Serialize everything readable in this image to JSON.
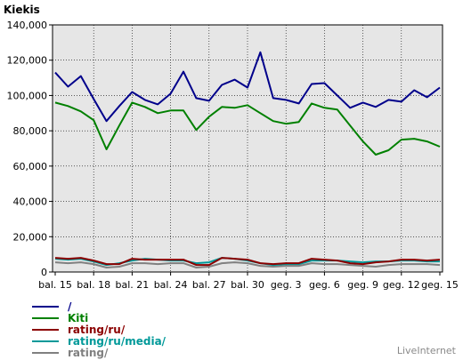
{
  "chart_data": {
    "type": "line",
    "y_axis_title": "Kiekis",
    "ylim": [
      0,
      140000
    ],
    "y_ticks": [
      "140,000",
      "120,000",
      "100,000",
      "80,000",
      "60,000",
      "40,000",
      "20,000",
      "0"
    ],
    "y_tick_values": [
      140000,
      120000,
      100000,
      80000,
      60000,
      40000,
      20000,
      0
    ],
    "grid": true,
    "x_tick_labels": [
      "bal. 15",
      "bal. 18",
      "bal. 21",
      "bal. 24",
      "bal. 27",
      "bal. 30",
      "geg. 3",
      "geg. 6",
      "geg. 9",
      "geg. 12",
      "geg. 15"
    ],
    "x_tick_positions": [
      0,
      3,
      6,
      9,
      12,
      15,
      18,
      21,
      24,
      27,
      30
    ],
    "x": [
      "bal. 15",
      "bal. 16",
      "bal. 17",
      "bal. 18",
      "bal. 19",
      "bal. 20",
      "bal. 21",
      "bal. 22",
      "bal. 23",
      "bal. 24",
      "bal. 25",
      "bal. 26",
      "bal. 27",
      "bal. 28",
      "bal. 29",
      "bal. 30",
      "geg. 1",
      "geg. 2",
      "geg. 3",
      "geg. 4",
      "geg. 5",
      "geg. 6",
      "geg. 7",
      "geg. 8",
      "geg. 9",
      "geg. 10",
      "geg. 11",
      "geg. 12",
      "geg. 13",
      "geg. 14",
      "geg. 15"
    ],
    "series": [
      {
        "name": "/",
        "color": "#00008b",
        "values": [
          113000,
          105000,
          111000,
          98000,
          85500,
          94000,
          102000,
          97500,
          95000,
          101000,
          113500,
          98500,
          97000,
          106000,
          109000,
          104500,
          124500,
          98500,
          97500,
          95500,
          106500,
          107000,
          100000,
          93000,
          96000,
          93500,
          97500,
          96500,
          103000,
          99000,
          104500
        ]
      },
      {
        "name": "Kiti",
        "color": "#008000",
        "values": [
          96000,
          94000,
          91000,
          86000,
          69500,
          83000,
          96000,
          93500,
          90000,
          91500,
          91500,
          80500,
          88000,
          93500,
          93000,
          94500,
          90000,
          85500,
          84000,
          85000,
          95500,
          93000,
          92000,
          83000,
          74000,
          66500,
          69000,
          75000,
          75500,
          74000,
          71000
        ]
      },
      {
        "name": "rating/ru/",
        "color": "#8b0000",
        "values": [
          8000,
          7500,
          8000,
          6500,
          4500,
          4500,
          7500,
          7000,
          7000,
          7000,
          7000,
          4000,
          4000,
          8000,
          7500,
          7000,
          5000,
          4500,
          5000,
          5000,
          7500,
          7000,
          6500,
          5000,
          4500,
          5500,
          6000,
          7000,
          7000,
          6500,
          7000
        ]
      },
      {
        "name": "rating/ru/media/",
        "color": "#009999",
        "values": [
          7500,
          7000,
          7500,
          6000,
          4000,
          5000,
          6500,
          7500,
          7000,
          6500,
          6500,
          5000,
          5500,
          8000,
          7500,
          6500,
          5000,
          4000,
          4500,
          4500,
          6500,
          6500,
          6500,
          6000,
          5500,
          6000,
          6000,
          6500,
          6500,
          6000,
          6000
        ]
      },
      {
        "name": "rating/",
        "color": "#808080",
        "values": [
          5500,
          5000,
          5500,
          4500,
          2500,
          3000,
          5000,
          5000,
          4500,
          5000,
          5000,
          2500,
          3000,
          5000,
          5500,
          5000,
          3500,
          3000,
          3500,
          3500,
          5000,
          4500,
          4500,
          4000,
          3500,
          3000,
          4000,
          4500,
          4500,
          4500,
          4000
        ]
      }
    ]
  },
  "watermark": "LiveInternet"
}
